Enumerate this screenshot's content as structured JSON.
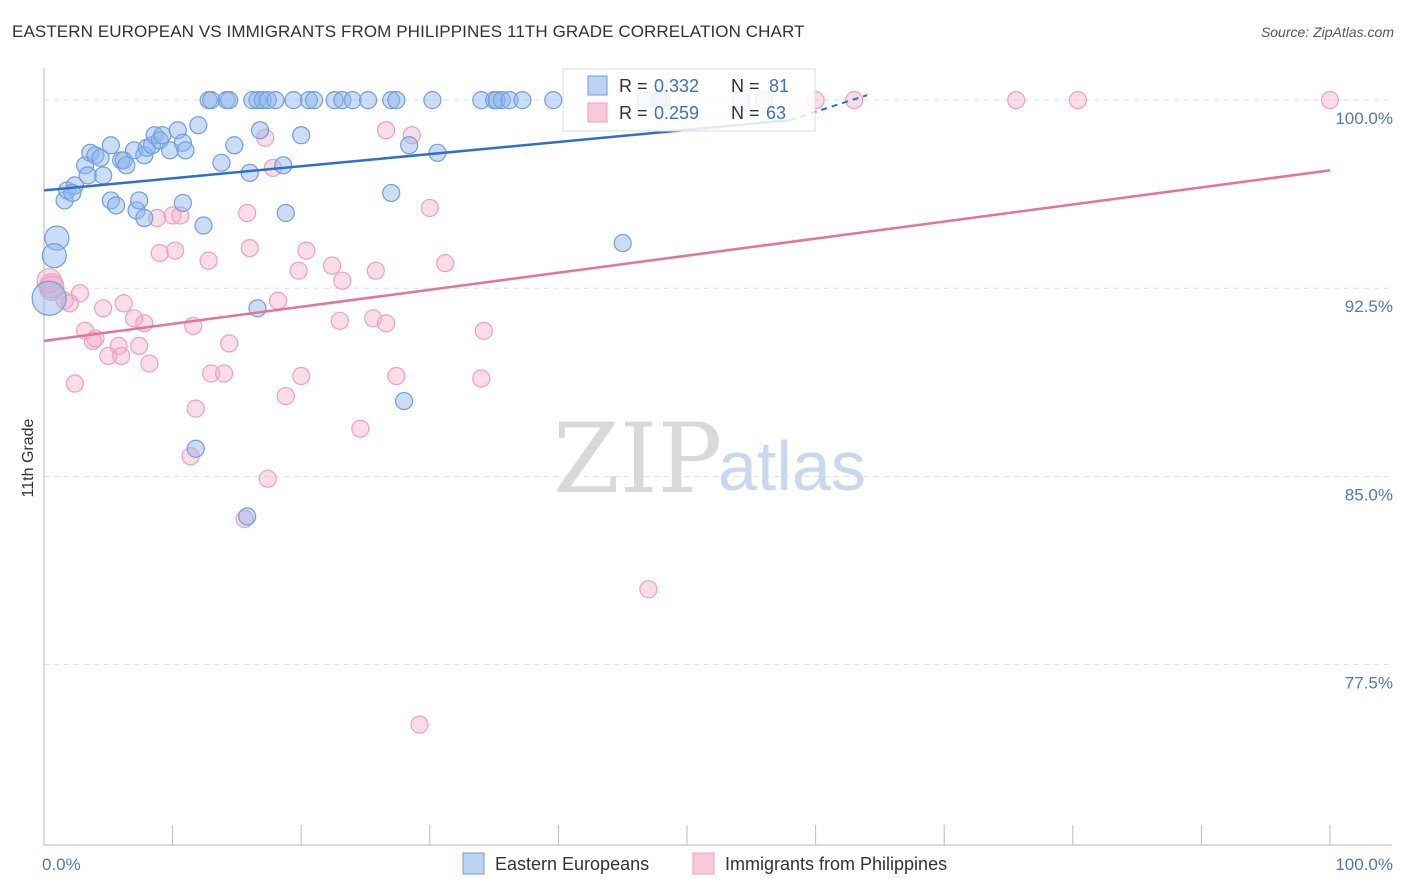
{
  "title": "EASTERN EUROPEAN VS IMMIGRANTS FROM PHILIPPINES 11TH GRADE CORRELATION CHART",
  "source": "Source: ZipAtlas.com",
  "watermark": {
    "zip": "ZIP",
    "atlas": "atlas"
  },
  "colors": {
    "blue": "#6f9fdf",
    "blue_line": "#2f6fd0",
    "pink": "#f0a0bd",
    "pink_line": "#e8729a"
  },
  "legend": {
    "blue": {
      "r_label": "R = ",
      "r_value": "0.332",
      "n_label": "N = ",
      "n_value": "81"
    },
    "pink": {
      "r_label": "R = ",
      "r_value": "0.259",
      "n_label": "N = ",
      "n_value": "63"
    }
  },
  "chart_data": {
    "type": "scatter",
    "ylabel": "11th Grade",
    "x_tick_labels": {
      "left": "0.0%",
      "right": "100.0%"
    },
    "y_ticks": [
      {
        "value": 100.0,
        "label": "100.0%"
      },
      {
        "value": 92.5,
        "label": "92.5%"
      },
      {
        "value": 85.0,
        "label": "85.0%"
      },
      {
        "value": 77.5,
        "label": "77.5%"
      }
    ],
    "xlim": [
      0,
      100
    ],
    "ylim": [
      70.3,
      101.6
    ],
    "series": [
      {
        "name": "Eastern Europeans",
        "color": "#6f9fdf",
        "trend": {
          "x": [
            0,
            58
          ],
          "y": [
            96.4,
            99.2
          ]
        },
        "trend_ext": {
          "x": [
            58,
            64
          ],
          "y": [
            99.2,
            100.2
          ]
        },
        "points": [
          [
            12.8,
            100
          ],
          [
            13.0,
            100
          ],
          [
            14.2,
            100
          ],
          [
            14.4,
            100
          ],
          [
            16.2,
            100
          ],
          [
            16.6,
            100
          ],
          [
            17.0,
            100
          ],
          [
            17.4,
            100
          ],
          [
            18.0,
            100
          ],
          [
            19.4,
            100
          ],
          [
            20.6,
            100
          ],
          [
            21.0,
            100
          ],
          [
            22.6,
            100
          ],
          [
            23.2,
            100
          ],
          [
            24.0,
            100
          ],
          [
            25.2,
            100
          ],
          [
            27.0,
            100
          ],
          [
            27.4,
            100
          ],
          [
            30.2,
            100
          ],
          [
            34.0,
            100
          ],
          [
            35.0,
            100
          ],
          [
            35.2,
            100
          ],
          [
            35.6,
            100
          ],
          [
            36.2,
            100
          ],
          [
            37.2,
            100
          ],
          [
            39.6,
            100
          ],
          [
            46.8,
            100
          ],
          [
            47.8,
            100
          ],
          [
            48.0,
            100
          ],
          [
            54.2,
            100
          ],
          [
            56.0,
            100
          ],
          [
            1.0,
            94.5
          ],
          [
            0.8,
            93.8
          ],
          [
            0.4,
            92.1
          ],
          [
            1.6,
            96.0
          ],
          [
            1.8,
            96.4
          ],
          [
            2.4,
            96.6
          ],
          [
            2.2,
            96.3
          ],
          [
            3.2,
            97.4
          ],
          [
            3.4,
            97.0
          ],
          [
            3.6,
            97.9
          ],
          [
            4.0,
            97.8
          ],
          [
            4.4,
            97.7
          ],
          [
            4.6,
            97.0
          ],
          [
            5.2,
            98.2
          ],
          [
            6.0,
            97.6
          ],
          [
            6.2,
            97.6
          ],
          [
            6.4,
            97.4
          ],
          [
            7.0,
            98.0
          ],
          [
            7.8,
            97.8
          ],
          [
            8.0,
            98.1
          ],
          [
            8.4,
            98.2
          ],
          [
            8.6,
            98.6
          ],
          [
            9.0,
            98.4
          ],
          [
            9.2,
            98.6
          ],
          [
            9.8,
            98.0
          ],
          [
            10.4,
            98.8
          ],
          [
            10.8,
            98.3
          ],
          [
            11.0,
            98.0
          ],
          [
            12.0,
            99.0
          ],
          [
            13.8,
            97.5
          ],
          [
            14.8,
            98.2
          ],
          [
            16.0,
            97.1
          ],
          [
            16.8,
            98.8
          ],
          [
            18.6,
            97.4
          ],
          [
            20.0,
            98.6
          ],
          [
            28.4,
            98.2
          ],
          [
            30.6,
            97.9
          ],
          [
            5.2,
            96.0
          ],
          [
            5.6,
            95.8
          ],
          [
            7.2,
            95.6
          ],
          [
            7.4,
            96.0
          ],
          [
            7.8,
            95.3
          ],
          [
            10.8,
            95.9
          ],
          [
            12.4,
            95.0
          ],
          [
            18.8,
            95.5
          ],
          [
            27.0,
            96.3
          ],
          [
            45.0,
            94.3
          ],
          [
            16.6,
            91.7
          ],
          [
            28.0,
            88.0
          ],
          [
            11.8,
            86.1
          ],
          [
            15.8,
            83.4
          ]
        ]
      },
      {
        "name": "Immigrants from Philippines",
        "color": "#f0a0bd",
        "trend": {
          "x": [
            0,
            100
          ],
          "y": [
            90.4,
            97.2
          ]
        },
        "points": [
          [
            60.0,
            100
          ],
          [
            63.0,
            100
          ],
          [
            75.6,
            100
          ],
          [
            80.4,
            100
          ],
          [
            100.0,
            100
          ],
          [
            26.6,
            98.8
          ],
          [
            28.6,
            98.6
          ],
          [
            17.2,
            98.5
          ],
          [
            17.8,
            97.3
          ],
          [
            30.0,
            95.7
          ],
          [
            15.8,
            95.5
          ],
          [
            8.8,
            95.3
          ],
          [
            10.0,
            95.4
          ],
          [
            10.6,
            95.4
          ],
          [
            9.0,
            93.9
          ],
          [
            10.2,
            94.0
          ],
          [
            12.8,
            93.6
          ],
          [
            16.0,
            94.1
          ],
          [
            20.4,
            94.0
          ],
          [
            19.8,
            93.2
          ],
          [
            22.4,
            93.4
          ],
          [
            23.2,
            92.8
          ],
          [
            25.8,
            93.2
          ],
          [
            31.2,
            93.5
          ],
          [
            0.4,
            92.8
          ],
          [
            0.6,
            92.6
          ],
          [
            2.8,
            92.3
          ],
          [
            1.6,
            92.0
          ],
          [
            2.0,
            91.9
          ],
          [
            4.6,
            91.7
          ],
          [
            7.0,
            91.3
          ],
          [
            6.2,
            91.9
          ],
          [
            7.8,
            91.1
          ],
          [
            11.6,
            91.0
          ],
          [
            18.2,
            92.0
          ],
          [
            23.0,
            91.2
          ],
          [
            25.6,
            91.3
          ],
          [
            26.6,
            91.1
          ],
          [
            34.2,
            90.8
          ],
          [
            3.2,
            90.8
          ],
          [
            3.8,
            90.4
          ],
          [
            4.0,
            90.5
          ],
          [
            5.8,
            90.2
          ],
          [
            7.4,
            90.2
          ],
          [
            14.4,
            90.3
          ],
          [
            5.0,
            89.8
          ],
          [
            6.0,
            89.8
          ],
          [
            8.2,
            89.5
          ],
          [
            13.0,
            89.1
          ],
          [
            14.0,
            89.1
          ],
          [
            20.0,
            89.0
          ],
          [
            27.4,
            89.0
          ],
          [
            34.0,
            88.9
          ],
          [
            2.4,
            88.7
          ],
          [
            18.8,
            88.2
          ],
          [
            11.8,
            87.7
          ],
          [
            24.6,
            86.9
          ],
          [
            11.4,
            85.8
          ],
          [
            17.4,
            84.9
          ],
          [
            15.6,
            83.3
          ],
          [
            47.0,
            80.5
          ],
          [
            29.2,
            75.1
          ],
          [
            0.6,
            92.5
          ]
        ]
      }
    ]
  },
  "bottom_legend": {
    "blue": "Eastern Europeans",
    "pink": "Immigrants from Philippines"
  }
}
